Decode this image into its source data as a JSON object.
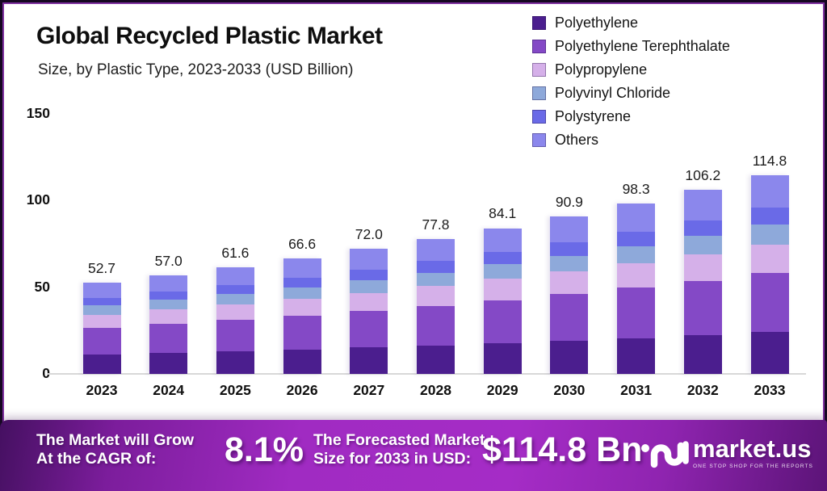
{
  "header": {
    "title": "Global Recycled Plastic Market",
    "subtitle": "Size, by Plastic Type, 2023-2033 (USD Billion)"
  },
  "chart_data": {
    "type": "bar",
    "stacked": true,
    "title": "Global Recycled Plastic Market",
    "subtitle": "Size, by Plastic Type, 2023-2033 (USD Billion)",
    "unit": "USD Billion",
    "categories": [
      "2023",
      "2024",
      "2025",
      "2026",
      "2027",
      "2028",
      "2029",
      "2030",
      "2031",
      "2032",
      "2033"
    ],
    "series": [
      {
        "name": "Polyethylene",
        "color": "#4b1e8e",
        "values": [
          11.1,
          12.0,
          12.9,
          14.0,
          15.2,
          16.3,
          17.7,
          19.1,
          20.6,
          22.3,
          24.1
        ]
      },
      {
        "name": "Polyethylene Terephthalate",
        "color": "#8449c6",
        "values": [
          15.5,
          16.8,
          18.2,
          19.6,
          21.2,
          23.0,
          24.8,
          26.8,
          29.0,
          31.3,
          33.9
        ]
      },
      {
        "name": "Polypropylene",
        "color": "#d5b0e9",
        "values": [
          7.6,
          8.3,
          8.9,
          9.7,
          10.4,
          11.3,
          12.2,
          13.2,
          14.3,
          15.4,
          16.6
        ]
      },
      {
        "name": "Polyvinyl Chloride",
        "color": "#8ea9da",
        "values": [
          5.3,
          5.7,
          6.2,
          6.6,
          7.2,
          7.8,
          8.4,
          9.1,
          9.8,
          10.6,
          11.5
        ]
      },
      {
        "name": "Polystyrene",
        "color": "#6a6ae7",
        "values": [
          4.5,
          4.8,
          5.2,
          5.7,
          6.1,
          6.6,
          7.1,
          7.7,
          8.4,
          9.0,
          9.8
        ]
      },
      {
        "name": "Others",
        "color": "#8b87ec",
        "values": [
          8.7,
          9.4,
          10.2,
          11.0,
          11.9,
          12.8,
          13.9,
          15.0,
          16.2,
          17.6,
          18.9
        ]
      }
    ],
    "totals_display": [
      "52.7",
      "57.0",
      "61.6",
      "66.6",
      "72.0",
      "77.8",
      "84.1",
      "90.9",
      "98.3",
      "106.2",
      "114.8"
    ],
    "ylim": [
      0,
      150
    ],
    "yticks": [
      "0",
      "50",
      "100",
      "150"
    ],
    "grid": false,
    "legend_position": "top-right"
  },
  "footer": {
    "growth_label_line1": "The Market will Grow",
    "growth_label_line2": "At the CAGR of:",
    "cagr_value": "8.1%",
    "forecast_label_line1": "The Forecasted Market",
    "forecast_label_line2": "Size for 2033 in USD:",
    "forecast_value": "$114.8 Bn",
    "brand_name": "market.us",
    "brand_tagline": "ONE STOP SHOP FOR THE REPORTS"
  },
  "colors": {
    "card_border": "#7e2f9e",
    "banner_bright": "#a52cc6",
    "banner_dark": "#451061",
    "axis_line": "#d8d8d8"
  }
}
